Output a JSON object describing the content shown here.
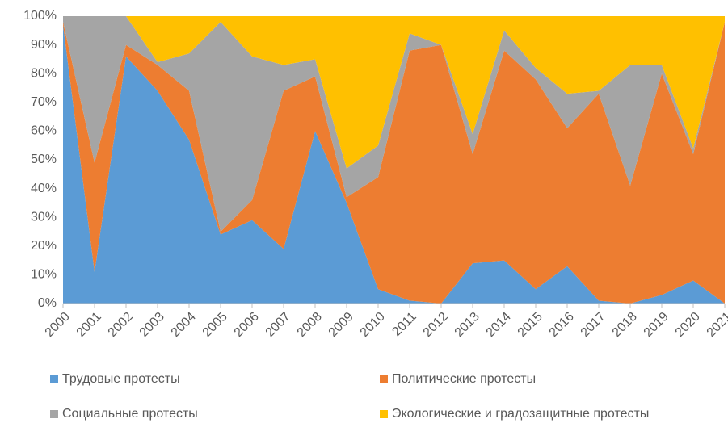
{
  "chart_data": {
    "type": "stacked_area",
    "stacked_percent": true,
    "categories": [
      "2000",
      "2001",
      "2002",
      "2003",
      "2004",
      "2005",
      "2006",
      "2007",
      "2008",
      "2009",
      "2010",
      "2011",
      "2012",
      "2013",
      "2014",
      "2015",
      "2016",
      "2017",
      "2018",
      "2019",
      "2020",
      "2021"
    ],
    "series": [
      {
        "name": "Трудовые протесты",
        "color": "#5b9bd5",
        "values": [
          97,
          11,
          86,
          74,
          57,
          24,
          29,
          19,
          60,
          35,
          5,
          1,
          0,
          14,
          15,
          5,
          13,
          1,
          0,
          3,
          8,
          0
        ]
      },
      {
        "name": "Политические протесты",
        "color": "#ed7d31",
        "values": [
          1,
          38,
          4,
          9,
          17,
          1,
          7,
          55,
          19,
          2,
          39,
          87,
          90,
          38,
          73,
          73,
          48,
          72,
          41,
          77,
          44,
          98
        ]
      },
      {
        "name": "Социальные протесты",
        "color": "#a5a5a5",
        "values": [
          2,
          51,
          10,
          1,
          13,
          73,
          50,
          9,
          6,
          10,
          11,
          6,
          0,
          7,
          7,
          4,
          12,
          1,
          42,
          3,
          2,
          0
        ]
      },
      {
        "name": "Экологические и градозащитные протесты",
        "color": "#ffc000",
        "values": [
          0,
          0,
          0,
          16,
          13,
          2,
          14,
          17,
          15,
          53,
          45,
          6,
          10,
          41,
          5,
          18,
          27,
          26,
          17,
          17,
          46,
          2
        ]
      }
    ],
    "ylim": [
      0,
      100
    ],
    "yticks": [
      {
        "value": 0,
        "label": "0%"
      },
      {
        "value": 10,
        "label": "10%"
      },
      {
        "value": 20,
        "label": "20%"
      },
      {
        "value": 30,
        "label": "30%"
      },
      {
        "value": 40,
        "label": "40%"
      },
      {
        "value": 50,
        "label": "50%"
      },
      {
        "value": 60,
        "label": "60%"
      },
      {
        "value": 70,
        "label": "70%"
      },
      {
        "value": 80,
        "label": "80%"
      },
      {
        "value": 90,
        "label": "90%"
      },
      {
        "value": 100,
        "label": "100%"
      }
    ],
    "grid": false,
    "legend": "bottom"
  }
}
